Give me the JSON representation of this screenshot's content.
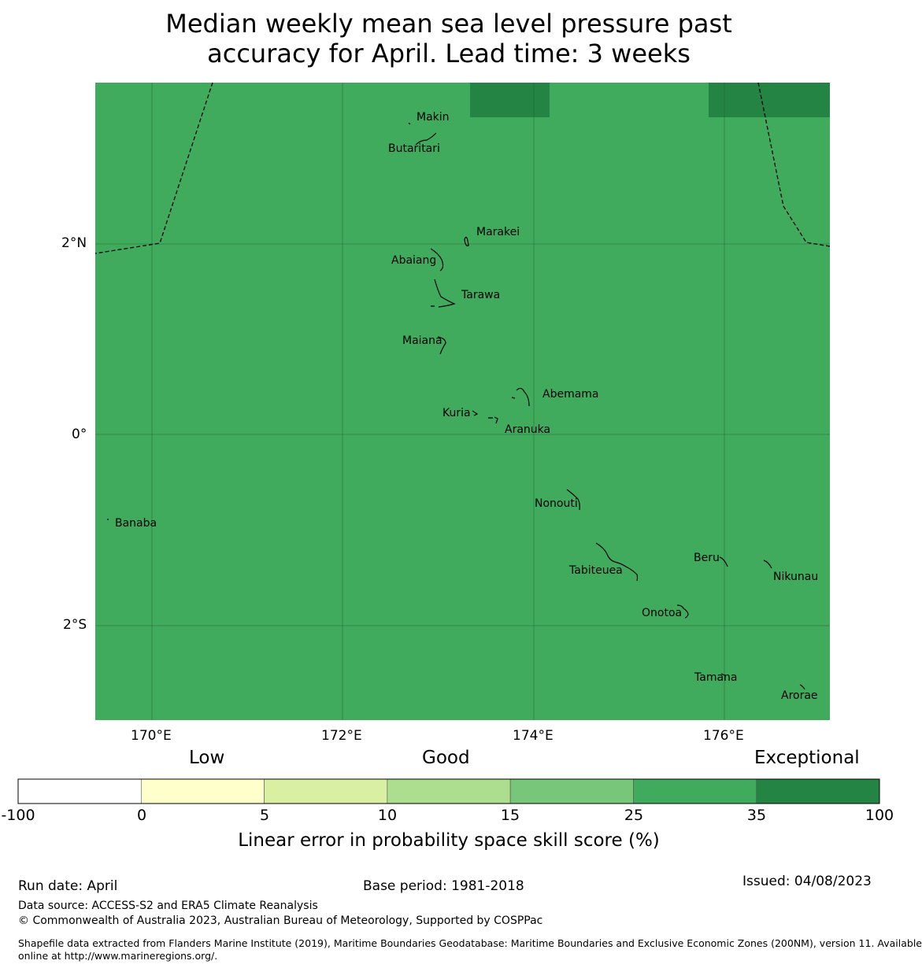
{
  "title": {
    "line1": "Median weekly mean sea level pressure past",
    "line2": "accuracy for April. Lead time: 3 weeks"
  },
  "map": {
    "background_color": "#41ab5d",
    "exceptional_color": "#238443",
    "lon_ticks": [
      "170°E",
      "172°E",
      "174°E",
      "176°E"
    ],
    "lat_ticks": [
      "2°N",
      "0°",
      "2°S"
    ],
    "places": [
      {
        "name": "Makin"
      },
      {
        "name": "Butaritari"
      },
      {
        "name": "Marakei"
      },
      {
        "name": "Abaiang"
      },
      {
        "name": "Tarawa"
      },
      {
        "name": "Maiana"
      },
      {
        "name": "Abemama"
      },
      {
        "name": "Kuria"
      },
      {
        "name": "Aranuka"
      },
      {
        "name": "Nonouti"
      },
      {
        "name": "Banaba"
      },
      {
        "name": "Beru"
      },
      {
        "name": "Tabiteuea"
      },
      {
        "name": "Nikunau"
      },
      {
        "name": "Onotoa"
      },
      {
        "name": "Tamana"
      },
      {
        "name": "Arorae"
      }
    ]
  },
  "colorbar": {
    "categories": [
      "Low",
      "Good",
      "Exceptional"
    ],
    "ticks": [
      "-100",
      "0",
      "5",
      "10",
      "15",
      "25",
      "35",
      "100"
    ],
    "colors": [
      "#ffffff",
      "#ffffcc",
      "#d9f0a3",
      "#addd8e",
      "#78c679",
      "#41ab5d",
      "#238443"
    ],
    "label": "Linear error in probability space skill score (%)"
  },
  "footer": {
    "run_date": "Run date: April",
    "base_period": "Base period: 1981-2018",
    "issued": "Issued: 04/08/2023",
    "data_source": "Data source: ACCESS-S2 and ERA5 Climate Reanalysis",
    "copyright": "© Commonwealth of Australia 2023, Australian Bureau of Meteorology, Supported by COSPPac",
    "shapefile_line1": "Shapefile data extracted from Flanders Marine Institute (2019), Maritime Boundaries Geodatabase: Maritime Boundaries and Exclusive Economic Zones (200NM), version 11. Available",
    "shapefile_line2": "online at http://www.marineregions.org/."
  }
}
